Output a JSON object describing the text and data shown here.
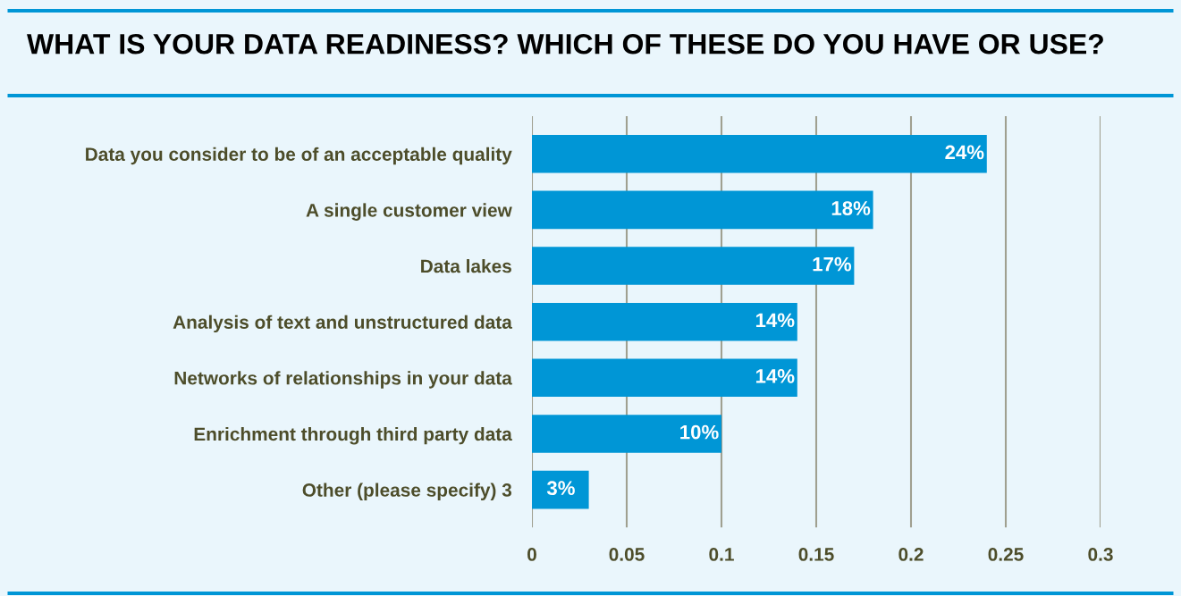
{
  "chart_data": {
    "type": "bar",
    "orientation": "horizontal",
    "title": "WHAT IS YOUR DATA READINESS? WHICH OF THESE DO YOU HAVE OR USE?",
    "categories": [
      "Data you consider to be of an acceptable quality",
      "A single customer view",
      "Data lakes",
      "Analysis of text and unstructured data",
      "Networks of relationships in your data",
      "Enrichment through third party data",
      "Other (please specify) 3"
    ],
    "values": [
      0.24,
      0.18,
      0.17,
      0.14,
      0.14,
      0.1,
      0.03
    ],
    "value_labels": [
      "24%",
      "18%",
      "17%",
      "14%",
      "14%",
      "10%",
      "3%"
    ],
    "color": "#0096d6",
    "xlim": [
      0,
      0.3
    ],
    "xticks": [
      0,
      0.05,
      0.1,
      0.15,
      0.2,
      0.25,
      0.3
    ],
    "grid": "x",
    "legend": false
  }
}
